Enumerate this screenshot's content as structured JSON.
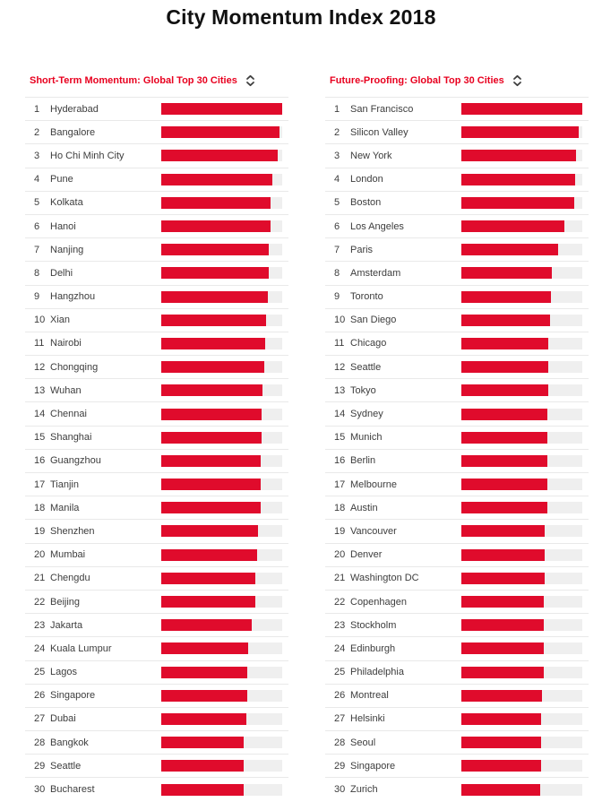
{
  "page": {
    "title": "City Momentum Index 2018"
  },
  "colors": {
    "bar": "#e00b2c",
    "bar_track": "#efefef",
    "header_text": "#e8001f",
    "title_text": "#111111",
    "row_text": "#3d3d3d",
    "separator": "#e9e9e9",
    "sort_icon": "#3f3f3f"
  },
  "chart_data": [
    {
      "type": "bar",
      "orientation": "horizontal",
      "title": "Short-Term Momentum: Global Top 30 Cities",
      "legend_position": "none",
      "grid": false,
      "value_range": [
        0,
        100
      ],
      "value_note": "bar length as percent of track, estimated from pixels",
      "rows": [
        {
          "rank": 1,
          "city": "Hyderabad",
          "value": 100
        },
        {
          "rank": 2,
          "city": "Bangalore",
          "value": 98
        },
        {
          "rank": 3,
          "city": "Ho Chi Minh City",
          "value": 96
        },
        {
          "rank": 4,
          "city": "Pune",
          "value": 92
        },
        {
          "rank": 5,
          "city": "Kolkata",
          "value": 90
        },
        {
          "rank": 6,
          "city": "Hanoi",
          "value": 90
        },
        {
          "rank": 7,
          "city": "Nanjing",
          "value": 89
        },
        {
          "rank": 8,
          "city": "Delhi",
          "value": 89
        },
        {
          "rank": 9,
          "city": "Hangzhou",
          "value": 88
        },
        {
          "rank": 10,
          "city": "Xian",
          "value": 87
        },
        {
          "rank": 11,
          "city": "Nairobi",
          "value": 86
        },
        {
          "rank": 12,
          "city": "Chongqing",
          "value": 85
        },
        {
          "rank": 13,
          "city": "Wuhan",
          "value": 84
        },
        {
          "rank": 14,
          "city": "Chennai",
          "value": 83
        },
        {
          "rank": 15,
          "city": "Shanghai",
          "value": 83
        },
        {
          "rank": 16,
          "city": "Guangzhou",
          "value": 82
        },
        {
          "rank": 17,
          "city": "Tianjin",
          "value": 82
        },
        {
          "rank": 18,
          "city": "Manila",
          "value": 82
        },
        {
          "rank": 19,
          "city": "Shenzhen",
          "value": 80
        },
        {
          "rank": 20,
          "city": "Mumbai",
          "value": 79
        },
        {
          "rank": 21,
          "city": "Chengdu",
          "value": 78
        },
        {
          "rank": 22,
          "city": "Beijing",
          "value": 78
        },
        {
          "rank": 23,
          "city": "Jakarta",
          "value": 75
        },
        {
          "rank": 24,
          "city": "Kuala Lumpur",
          "value": 72
        },
        {
          "rank": 25,
          "city": "Lagos",
          "value": 71
        },
        {
          "rank": 26,
          "city": "Singapore",
          "value": 71
        },
        {
          "rank": 27,
          "city": "Dubai",
          "value": 70
        },
        {
          "rank": 28,
          "city": "Bangkok",
          "value": 68
        },
        {
          "rank": 29,
          "city": "Seattle",
          "value": 68
        },
        {
          "rank": 30,
          "city": "Bucharest",
          "value": 68
        }
      ]
    },
    {
      "type": "bar",
      "orientation": "horizontal",
      "title": "Future-Proofing: Global Top 30 Cities",
      "legend_position": "none",
      "grid": false,
      "value_range": [
        0,
        100
      ],
      "value_note": "bar length as percent of track, estimated from pixels",
      "rows": [
        {
          "rank": 1,
          "city": "San Francisco",
          "value": 100
        },
        {
          "rank": 2,
          "city": "Silicon Valley",
          "value": 97
        },
        {
          "rank": 3,
          "city": "New York",
          "value": 95
        },
        {
          "rank": 4,
          "city": "London",
          "value": 94
        },
        {
          "rank": 5,
          "city": "Boston",
          "value": 93
        },
        {
          "rank": 6,
          "city": "Los Angeles",
          "value": 85
        },
        {
          "rank": 7,
          "city": "Paris",
          "value": 80
        },
        {
          "rank": 8,
          "city": "Amsterdam",
          "value": 75
        },
        {
          "rank": 9,
          "city": "Toronto",
          "value": 74
        },
        {
          "rank": 10,
          "city": "San Diego",
          "value": 73
        },
        {
          "rank": 11,
          "city": "Chicago",
          "value": 72
        },
        {
          "rank": 12,
          "city": "Seattle",
          "value": 72
        },
        {
          "rank": 13,
          "city": "Tokyo",
          "value": 72
        },
        {
          "rank": 14,
          "city": "Sydney",
          "value": 71
        },
        {
          "rank": 15,
          "city": "Munich",
          "value": 71
        },
        {
          "rank": 16,
          "city": "Berlin",
          "value": 71
        },
        {
          "rank": 17,
          "city": "Melbourne",
          "value": 71
        },
        {
          "rank": 18,
          "city": "Austin",
          "value": 71
        },
        {
          "rank": 19,
          "city": "Vancouver",
          "value": 69
        },
        {
          "rank": 20,
          "city": "Denver",
          "value": 69
        },
        {
          "rank": 21,
          "city": "Washington DC",
          "value": 69
        },
        {
          "rank": 22,
          "city": "Copenhagen",
          "value": 68
        },
        {
          "rank": 23,
          "city": "Stockholm",
          "value": 68
        },
        {
          "rank": 24,
          "city": "Edinburgh",
          "value": 68
        },
        {
          "rank": 25,
          "city": "Philadelphia",
          "value": 68
        },
        {
          "rank": 26,
          "city": "Montreal",
          "value": 67
        },
        {
          "rank": 27,
          "city": "Helsinki",
          "value": 66
        },
        {
          "rank": 28,
          "city": "Seoul",
          "value": 66
        },
        {
          "rank": 29,
          "city": "Singapore",
          "value": 66
        },
        {
          "rank": 30,
          "city": "Zurich",
          "value": 65
        }
      ]
    }
  ]
}
